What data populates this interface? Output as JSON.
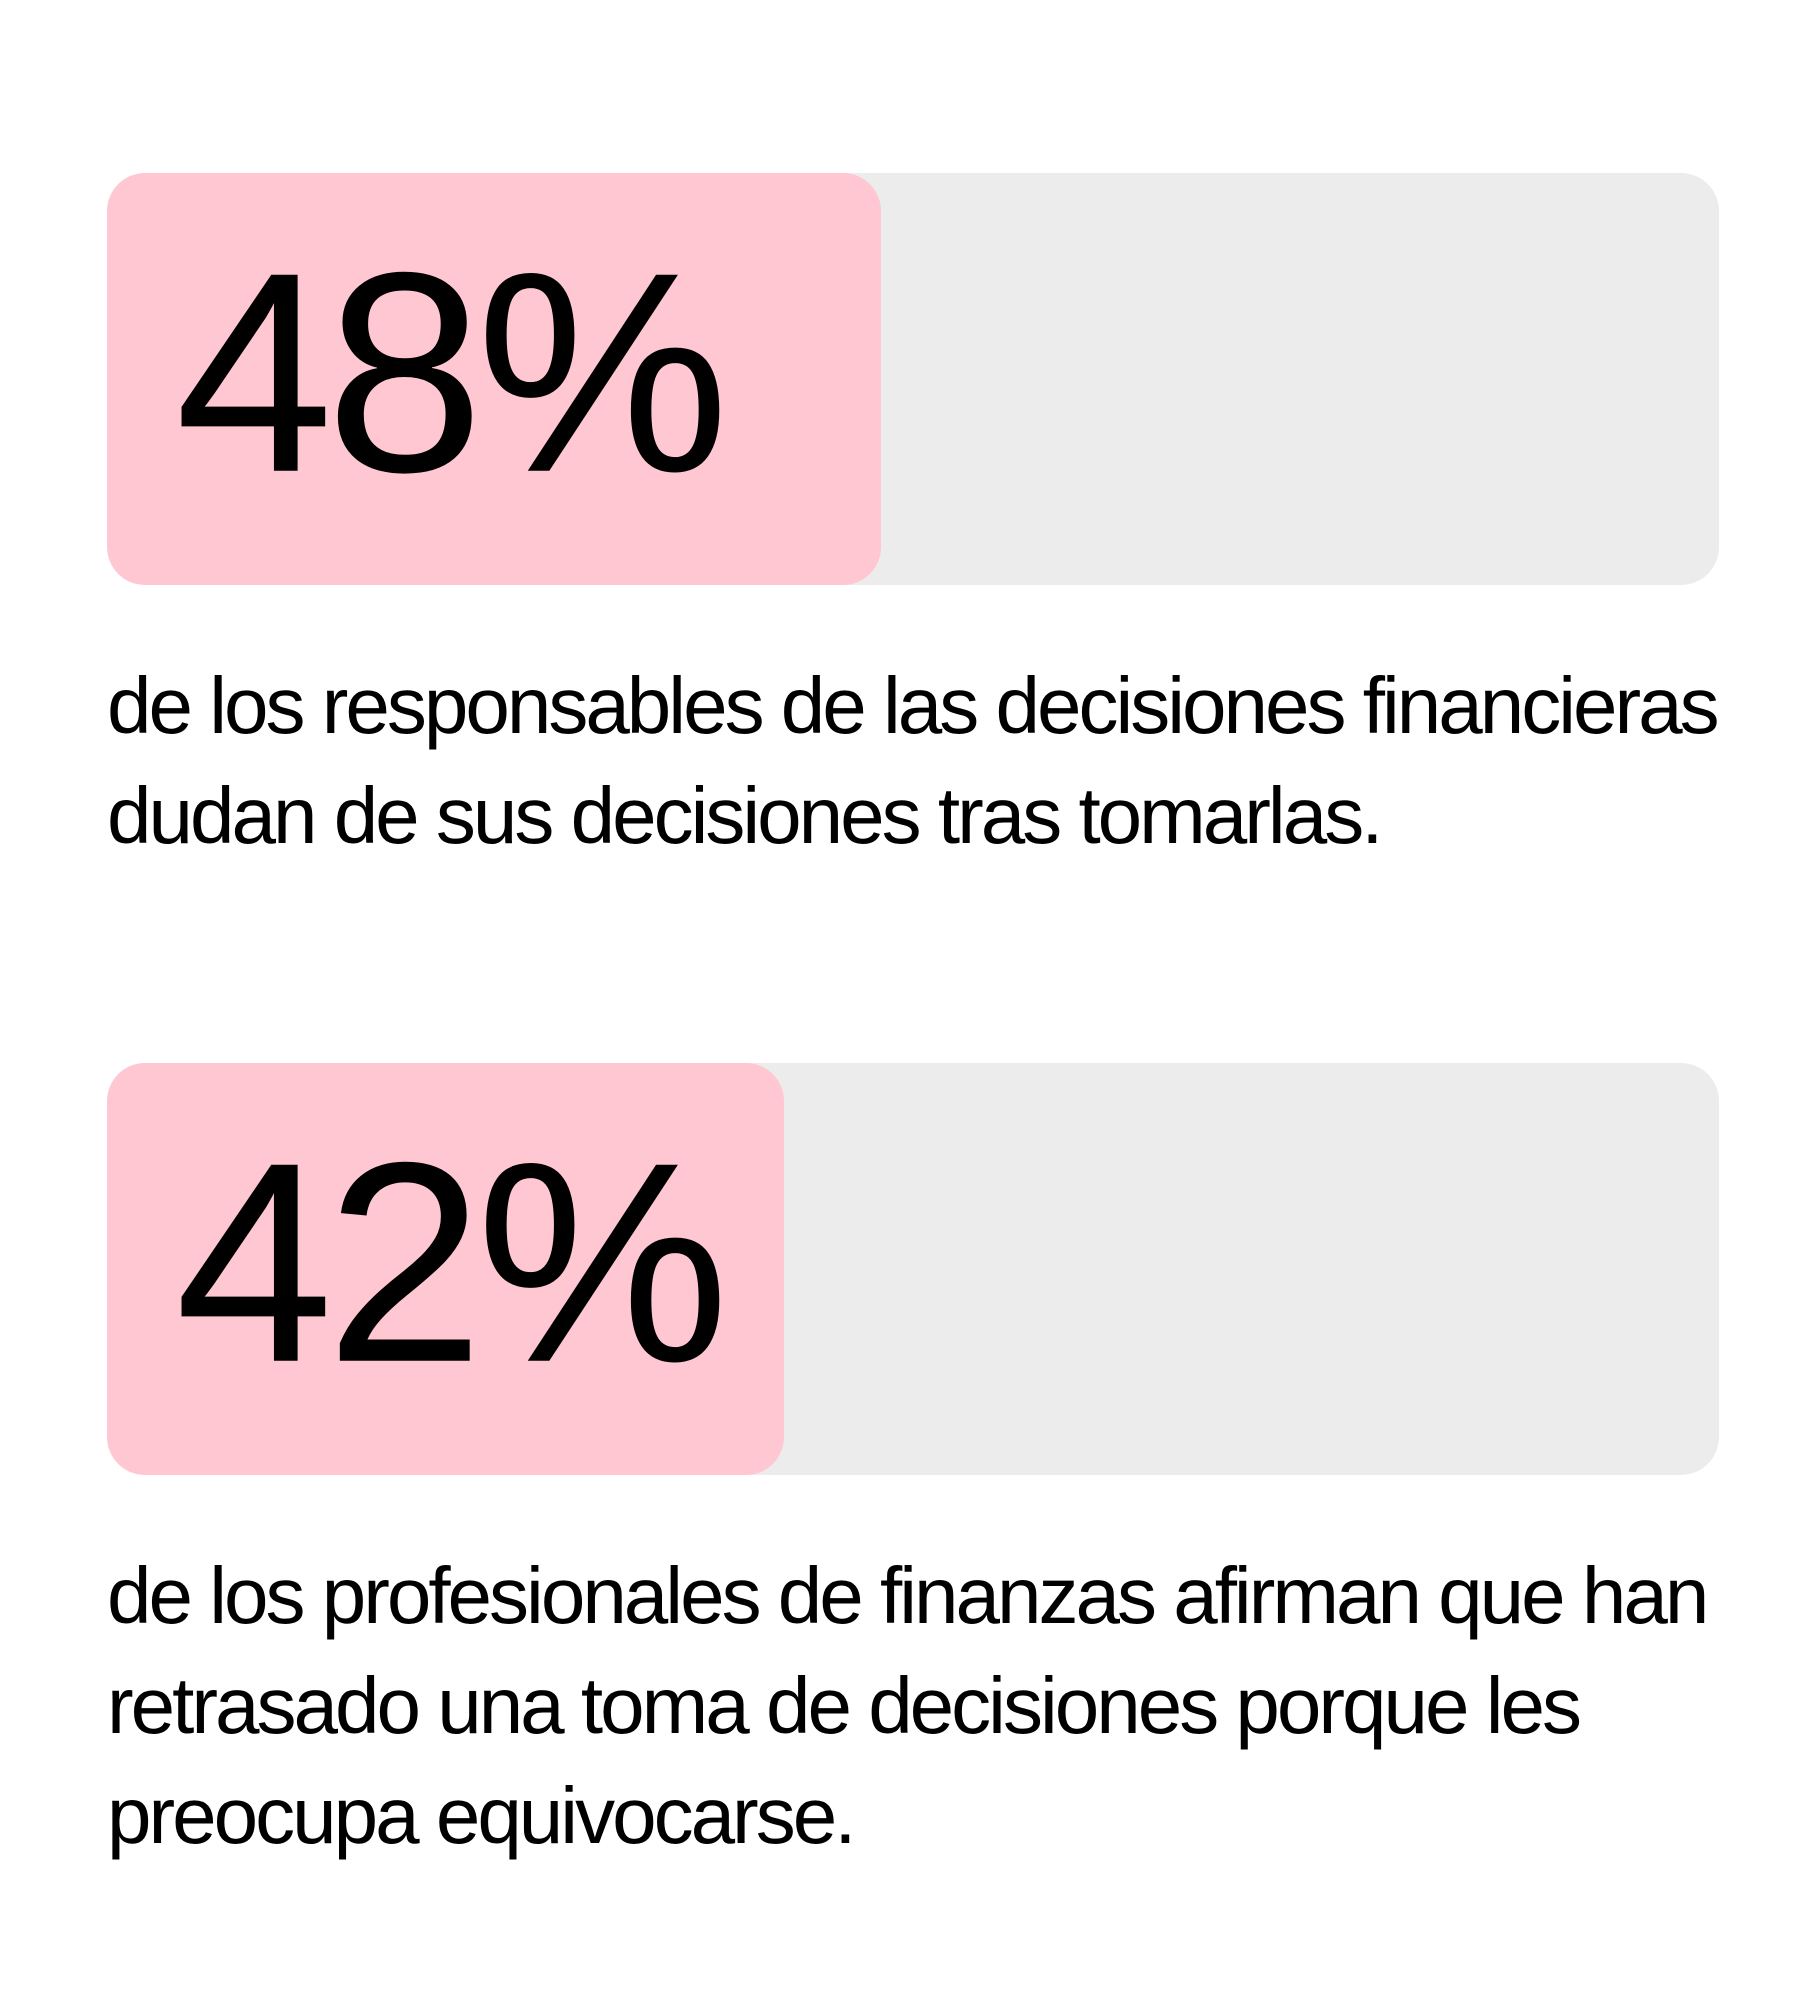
{
  "chart_data": {
    "type": "bar",
    "colors": {
      "fill": "#ffc7d2",
      "track": "#ececec",
      "text": "#000000"
    },
    "bars": [
      {
        "value": 48,
        "label": "48%",
        "caption": "de los responsables de las decisiones financieras dudan de sus decisiones tras tomarlas."
      },
      {
        "value": 42,
        "label": "42%",
        "caption": "de los profesionales de finanzas afirman que han retrasado una toma de decisiones porque les preocupa equivocarse."
      }
    ]
  }
}
